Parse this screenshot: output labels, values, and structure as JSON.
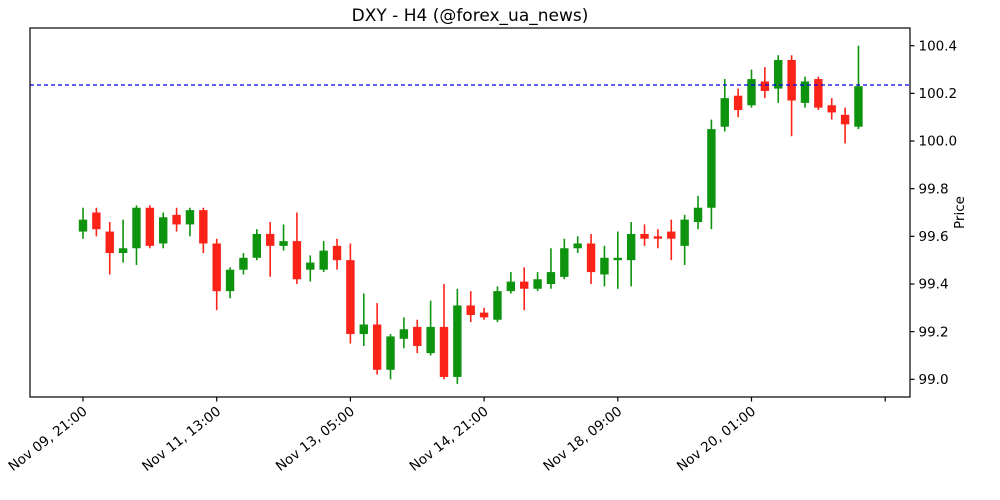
{
  "figure": {
    "title": "DXY - H4 (@forex_ua_news)"
  },
  "chart_data": {
    "type": "candlestick",
    "title": "DXY - H4 (@forex_ua_news)",
    "instrument": "DXY",
    "timeframe": "H4",
    "source_handle": "@forex_ua_news",
    "ylabel": "Price",
    "y_axis": {
      "side": "right",
      "min": 98.93,
      "max": 100.47,
      "tick_step": 0.2,
      "ticks": [
        100.4,
        100.2,
        100.0,
        99.8,
        99.6,
        99.4,
        99.2,
        99.0
      ]
    },
    "x_axis": {
      "rotation_deg": 38,
      "ticks": [
        {
          "index": 0,
          "label": "Nov 09, 21:00"
        },
        {
          "index": 10,
          "label": "Nov 11, 13:00"
        },
        {
          "index": 20,
          "label": "Nov 13, 05:00"
        },
        {
          "index": 30,
          "label": "Nov 14, 21:00"
        },
        {
          "index": 40,
          "label": "Nov 18, 09:00"
        },
        {
          "index": 50,
          "label": "Nov 20, 01:00"
        },
        {
          "index": 60,
          "label": ""
        }
      ]
    },
    "reference_line": {
      "price": 100.235,
      "color": "#0000ee",
      "style": "dashed"
    },
    "colors": {
      "up": "#0e930e",
      "down": "#fb2217",
      "axis": "#000000",
      "background": "#ffffff"
    },
    "candles": [
      {
        "o": 99.62,
        "h": 99.72,
        "l": 99.59,
        "c": 99.67
      },
      {
        "o": 99.7,
        "h": 99.72,
        "l": 99.6,
        "c": 99.63
      },
      {
        "o": 99.62,
        "h": 99.66,
        "l": 99.44,
        "c": 99.53
      },
      {
        "o": 99.53,
        "h": 99.67,
        "l": 99.49,
        "c": 99.55
      },
      {
        "o": 99.55,
        "h": 99.73,
        "l": 99.48,
        "c": 99.72
      },
      {
        "o": 99.72,
        "h": 99.73,
        "l": 99.55,
        "c": 99.56
      },
      {
        "o": 99.57,
        "h": 99.7,
        "l": 99.55,
        "c": 99.68
      },
      {
        "o": 99.69,
        "h": 99.72,
        "l": 99.62,
        "c": 99.65
      },
      {
        "o": 99.65,
        "h": 99.72,
        "l": 99.6,
        "c": 99.71
      },
      {
        "o": 99.71,
        "h": 99.72,
        "l": 99.53,
        "c": 99.57
      },
      {
        "o": 99.57,
        "h": 99.59,
        "l": 99.29,
        "c": 99.37
      },
      {
        "o": 99.37,
        "h": 99.47,
        "l": 99.34,
        "c": 99.46
      },
      {
        "o": 99.46,
        "h": 99.53,
        "l": 99.44,
        "c": 99.51
      },
      {
        "o": 99.51,
        "h": 99.63,
        "l": 99.5,
        "c": 99.61
      },
      {
        "o": 99.61,
        "h": 99.66,
        "l": 99.43,
        "c": 99.56
      },
      {
        "o": 99.56,
        "h": 99.65,
        "l": 99.54,
        "c": 99.58
      },
      {
        "o": 99.58,
        "h": 99.7,
        "l": 99.4,
        "c": 99.42
      },
      {
        "o": 99.46,
        "h": 99.52,
        "l": 99.41,
        "c": 99.49
      },
      {
        "o": 99.46,
        "h": 99.58,
        "l": 99.45,
        "c": 99.54
      },
      {
        "o": 99.56,
        "h": 99.59,
        "l": 99.46,
        "c": 99.5
      },
      {
        "o": 99.5,
        "h": 99.57,
        "l": 99.15,
        "c": 99.19
      },
      {
        "o": 99.19,
        "h": 99.36,
        "l": 99.14,
        "c": 99.23
      },
      {
        "o": 99.23,
        "h": 99.32,
        "l": 99.02,
        "c": 99.04
      },
      {
        "o": 99.04,
        "h": 99.19,
        "l": 99.0,
        "c": 99.18
      },
      {
        "o": 99.17,
        "h": 99.26,
        "l": 99.13,
        "c": 99.21
      },
      {
        "o": 99.22,
        "h": 99.25,
        "l": 99.11,
        "c": 99.14
      },
      {
        "o": 99.11,
        "h": 99.33,
        "l": 99.1,
        "c": 99.22
      },
      {
        "o": 99.22,
        "h": 99.4,
        "l": 99.0,
        "c": 99.01
      },
      {
        "o": 99.01,
        "h": 99.38,
        "l": 98.98,
        "c": 99.31
      },
      {
        "o": 99.31,
        "h": 99.37,
        "l": 99.24,
        "c": 99.27
      },
      {
        "o": 99.28,
        "h": 99.3,
        "l": 99.25,
        "c": 99.26
      },
      {
        "o": 99.25,
        "h": 99.39,
        "l": 99.24,
        "c": 99.37
      },
      {
        "o": 99.37,
        "h": 99.45,
        "l": 99.36,
        "c": 99.41
      },
      {
        "o": 99.41,
        "h": 99.47,
        "l": 99.29,
        "c": 99.38
      },
      {
        "o": 99.38,
        "h": 99.45,
        "l": 99.37,
        "c": 99.42
      },
      {
        "o": 99.4,
        "h": 99.55,
        "l": 99.38,
        "c": 99.45
      },
      {
        "o": 99.43,
        "h": 99.59,
        "l": 99.42,
        "c": 99.55
      },
      {
        "o": 99.55,
        "h": 99.6,
        "l": 99.53,
        "c": 99.57
      },
      {
        "o": 99.57,
        "h": 99.61,
        "l": 99.4,
        "c": 99.45
      },
      {
        "o": 99.44,
        "h": 99.56,
        "l": 99.39,
        "c": 99.51
      },
      {
        "o": 99.5,
        "h": 99.62,
        "l": 99.38,
        "c": 99.51
      },
      {
        "o": 99.5,
        "h": 99.66,
        "l": 99.39,
        "c": 99.61
      },
      {
        "o": 99.61,
        "h": 99.65,
        "l": 99.56,
        "c": 99.59
      },
      {
        "o": 99.6,
        "h": 99.63,
        "l": 99.55,
        "c": 99.59
      },
      {
        "o": 99.62,
        "h": 99.67,
        "l": 99.5,
        "c": 99.59
      },
      {
        "o": 99.56,
        "h": 99.69,
        "l": 99.48,
        "c": 99.67
      },
      {
        "o": 99.66,
        "h": 99.77,
        "l": 99.63,
        "c": 99.72
      },
      {
        "o": 99.72,
        "h": 100.09,
        "l": 99.63,
        "c": 100.05
      },
      {
        "o": 100.06,
        "h": 100.26,
        "l": 100.04,
        "c": 100.18
      },
      {
        "o": 100.19,
        "h": 100.22,
        "l": 100.1,
        "c": 100.13
      },
      {
        "o": 100.15,
        "h": 100.3,
        "l": 100.14,
        "c": 100.26
      },
      {
        "o": 100.25,
        "h": 100.31,
        "l": 100.18,
        "c": 100.21
      },
      {
        "o": 100.22,
        "h": 100.36,
        "l": 100.16,
        "c": 100.34
      },
      {
        "o": 100.34,
        "h": 100.36,
        "l": 100.02,
        "c": 100.17
      },
      {
        "o": 100.16,
        "h": 100.27,
        "l": 100.14,
        "c": 100.25
      },
      {
        "o": 100.26,
        "h": 100.27,
        "l": 100.13,
        "c": 100.14
      },
      {
        "o": 100.15,
        "h": 100.18,
        "l": 100.09,
        "c": 100.12
      },
      {
        "o": 100.11,
        "h": 100.14,
        "l": 99.99,
        "c": 100.07
      },
      {
        "o": 100.06,
        "h": 100.4,
        "l": 100.05,
        "c": 100.23
      }
    ]
  }
}
